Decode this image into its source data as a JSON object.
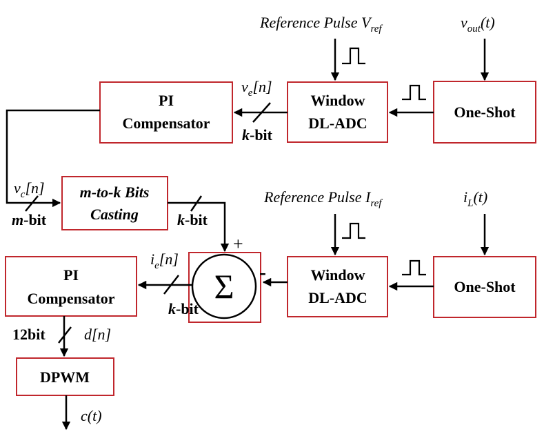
{
  "blocks": {
    "pi_top": [
      "PI",
      "Compensator"
    ],
    "window_top": [
      "Window",
      "DL-ADC"
    ],
    "oneshot_top": "One-Shot",
    "casting": [
      "m-to-k Bits",
      "Casting"
    ],
    "window_bottom": [
      "Window",
      "DL-ADC"
    ],
    "oneshot_bottom": "One-Shot",
    "pi_bottom": [
      "PI",
      "Compensator"
    ],
    "dpwm": "DPWM",
    "sum_symbol": "Σ"
  },
  "inputs": {
    "ref_v_main": "Reference Pulse V",
    "ref_v_sub": "ref",
    "vout_main": "v",
    "vout_sub": "out",
    "vout_tail": "(t)",
    "ref_i_main": "Reference Pulse I",
    "ref_i_sub": "ref",
    "il_main": "i",
    "il_sub": "L",
    "il_tail": "(t)"
  },
  "signals": {
    "ve_main": "v",
    "ve_sub": "e",
    "ve_tail": "[n]",
    "vc_main": "v",
    "vc_sub": "c",
    "vc_tail": "[n]",
    "ie_main": "i",
    "ie_sub": "e",
    "ie_tail": "[n]",
    "d": "d[n]",
    "c": "c(t)"
  },
  "bit_labels": {
    "k": "k",
    "m": "m",
    "suffix": "-bit",
    "twelve": "12bit"
  },
  "signs": {
    "plus": "+",
    "minus": "-"
  }
}
